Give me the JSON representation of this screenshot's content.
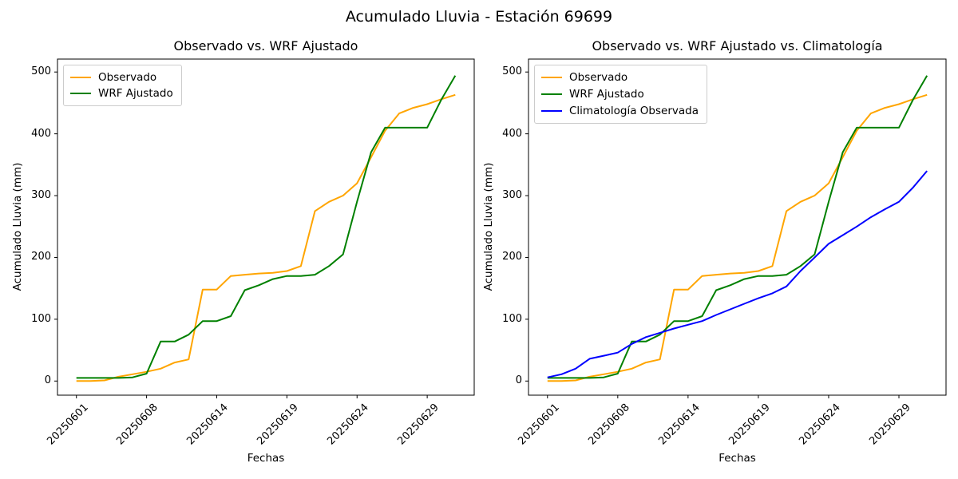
{
  "figure": {
    "suptitle": "Acumulado Lluvia - Estación 69699",
    "background": "#ffffff",
    "axis_color": "#000000"
  },
  "chart_data": [
    {
      "type": "line",
      "title": "Observado vs. WRF Ajustado",
      "xlabel": "Fechas",
      "ylabel": "Acumulado Lluvia (mm)",
      "ylim": [
        -25,
        520
      ],
      "y_ticks": [
        0,
        100,
        200,
        300,
        400,
        500
      ],
      "x_tick_labels": [
        "20250601",
        "20250608",
        "20250614",
        "20250619",
        "20250624",
        "20250629"
      ],
      "x_tick_indices": [
        0,
        5,
        10,
        15,
        20,
        25
      ],
      "n_points": 28,
      "grid": false,
      "legend_position": "upper left",
      "series": [
        {
          "name": "Observado",
          "color": "#FFA500",
          "values": [
            0,
            0,
            1,
            7,
            11,
            15,
            20,
            30,
            35,
            148,
            148,
            170,
            172,
            174,
            175,
            178,
            186,
            275,
            290,
            300,
            320,
            362,
            405,
            433,
            442,
            448,
            456,
            463
          ]
        },
        {
          "name": "WRF Ajustado",
          "color": "#008000",
          "values": [
            5,
            5,
            5,
            5,
            6,
            12,
            64,
            64,
            75,
            97,
            97,
            105,
            147,
            155,
            165,
            170,
            170,
            172,
            186,
            205,
            290,
            370,
            410,
            410,
            410,
            410,
            455,
            494
          ]
        }
      ]
    },
    {
      "type": "line",
      "title": "Observado vs. WRF Ajustado vs. Climatología",
      "xlabel": "Fechas",
      "ylabel": "Acumulado Lluvia (mm)",
      "ylim": [
        -25,
        520
      ],
      "y_ticks": [
        0,
        100,
        200,
        300,
        400,
        500
      ],
      "x_tick_labels": [
        "20250601",
        "20250608",
        "20250614",
        "20250619",
        "20250624",
        "20250629"
      ],
      "x_tick_indices": [
        0,
        5,
        10,
        15,
        20,
        25
      ],
      "n_points": 28,
      "grid": false,
      "legend_position": "upper left",
      "series": [
        {
          "name": "Observado",
          "color": "#FFA500",
          "values": [
            0,
            0,
            1,
            7,
            11,
            15,
            20,
            30,
            35,
            148,
            148,
            170,
            172,
            174,
            175,
            178,
            186,
            275,
            290,
            300,
            320,
            362,
            405,
            433,
            442,
            448,
            456,
            463
          ]
        },
        {
          "name": "WRF Ajustado",
          "color": "#008000",
          "values": [
            5,
            5,
            5,
            5,
            6,
            12,
            64,
            64,
            75,
            97,
            97,
            105,
            147,
            155,
            165,
            170,
            170,
            172,
            186,
            205,
            290,
            370,
            410,
            410,
            410,
            410,
            455,
            494
          ]
        },
        {
          "name": "Climatología Observada",
          "color": "#0000FF",
          "values": [
            6,
            11,
            20,
            36,
            41,
            46,
            60,
            71,
            78,
            85,
            91,
            97,
            107,
            116,
            125,
            134,
            142,
            153,
            178,
            200,
            222,
            236,
            250,
            265,
            278,
            290,
            313,
            340
          ]
        }
      ]
    }
  ]
}
